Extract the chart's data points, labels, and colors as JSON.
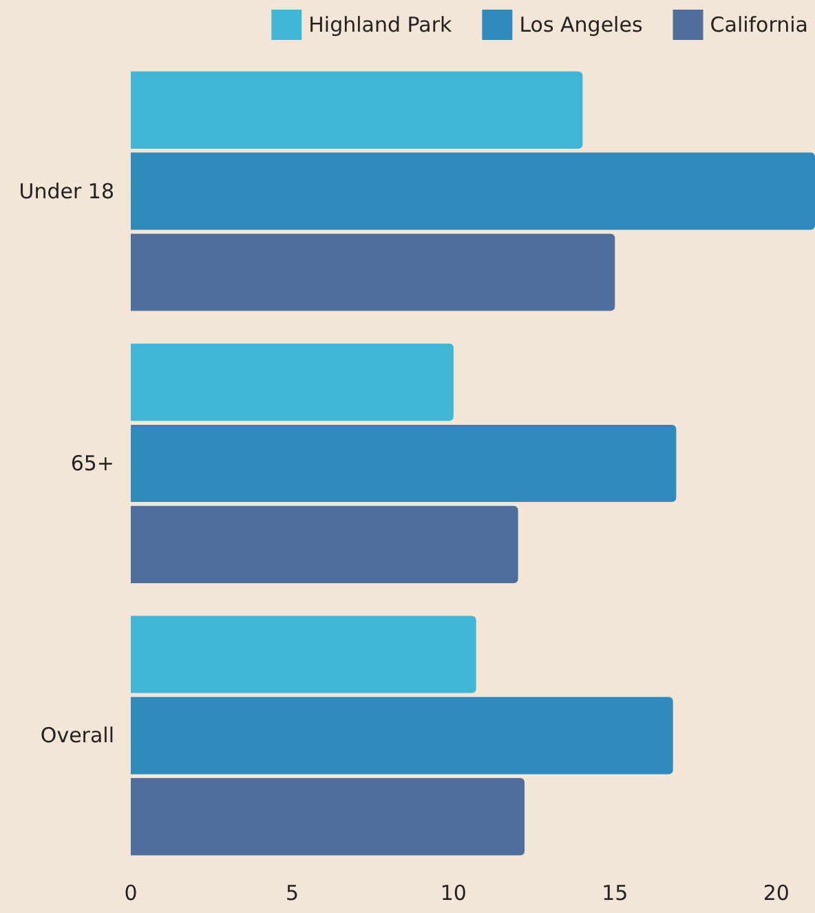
{
  "chart_data": {
    "type": "bar",
    "orientation": "horizontal",
    "categories": [
      "Under 18",
      "65+",
      "Overall"
    ],
    "series": [
      {
        "name": "Highland Park",
        "color": "#41b6d6",
        "values": [
          14,
          10,
          10.7
        ]
      },
      {
        "name": "Los Angeles",
        "color": "#2f8bbd",
        "values": [
          21.2,
          16.9,
          16.8
        ]
      },
      {
        "name": "California",
        "color": "#4f6e9b",
        "values": [
          15,
          12,
          12.2
        ]
      }
    ],
    "xlim": [
      0,
      21.2
    ],
    "xticks": [
      0,
      5,
      10,
      15,
      20
    ],
    "grid": false,
    "legend": "top right"
  }
}
